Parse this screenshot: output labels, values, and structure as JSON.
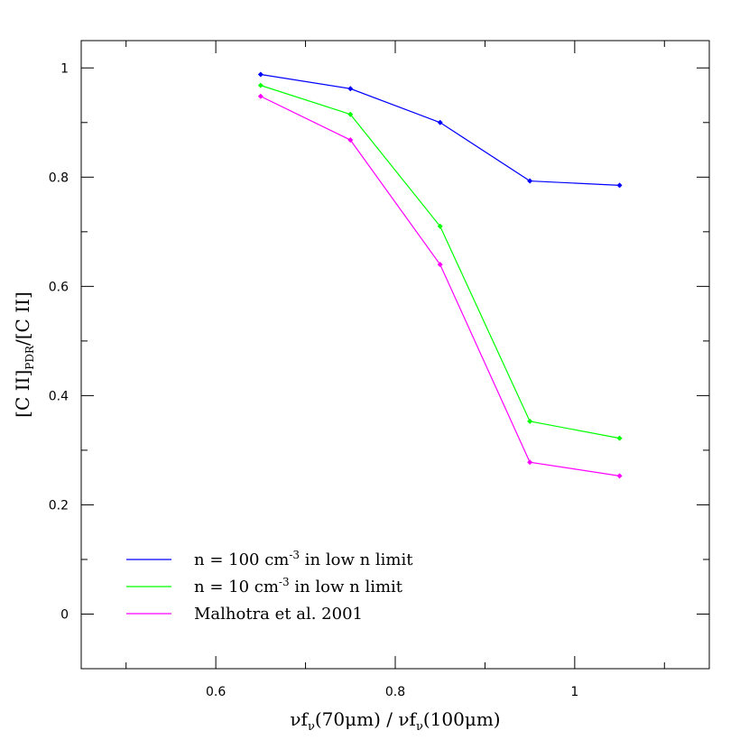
{
  "chart_data": {
    "type": "line",
    "xlabel_parts": {
      "nu": "ν",
      "f": "f",
      "sub": "ν",
      "left": "(70",
      "mu": "μ",
      "m_close": "m) / ",
      "right": "(100",
      "m_end": "m)"
    },
    "ylabel_parts": {
      "open": "[C II]",
      "sub": "PDR",
      "close": "/[C II]"
    },
    "xlim": [
      0.45,
      1.15
    ],
    "ylim": [
      -0.1,
      1.05
    ],
    "x_ticks": [
      0.6,
      0.8,
      1
    ],
    "x_tick_labels": [
      "0.6",
      "0.8",
      "1"
    ],
    "y_ticks": [
      0,
      0.2,
      0.4,
      0.6,
      0.8,
      1
    ],
    "y_tick_labels": [
      "0",
      "0.2",
      "0.4",
      "0.6",
      "0.8",
      "1"
    ],
    "legend_position": "bottom-left",
    "series": [
      {
        "key": "n100",
        "name_parts": {
          "before": "n = 100 cm",
          "sup": "-3",
          "after": " in low n limit"
        },
        "color": "#0000ff",
        "x": [
          0.65,
          0.75,
          0.85,
          0.95,
          1.05
        ],
        "y": [
          0.988,
          0.962,
          0.9,
          0.793,
          0.785
        ]
      },
      {
        "key": "n10",
        "name_parts": {
          "before": "n = 10 cm",
          "sup": "-3",
          "after": " in low n limit"
        },
        "color": "#00ff00",
        "x": [
          0.65,
          0.75,
          0.85,
          0.95,
          1.05
        ],
        "y": [
          0.968,
          0.915,
          0.71,
          0.353,
          0.322
        ]
      },
      {
        "key": "malhotra",
        "name_parts": {
          "before": "Malhotra et al. 2001",
          "sup": "",
          "after": ""
        },
        "color": "#ff00ff",
        "x": [
          0.65,
          0.75,
          0.85,
          0.95,
          1.05
        ],
        "y": [
          0.948,
          0.868,
          0.64,
          0.278,
          0.253
        ]
      }
    ]
  }
}
